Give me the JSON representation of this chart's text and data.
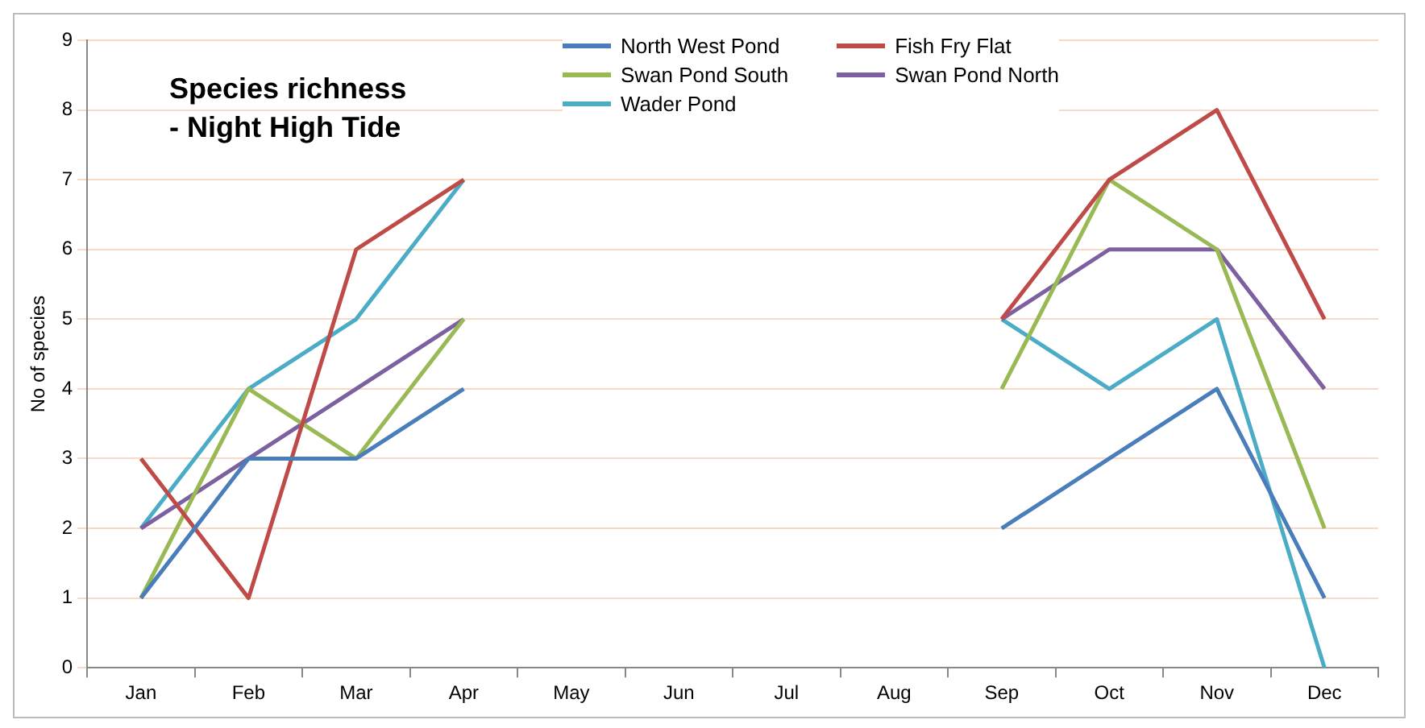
{
  "chart_data": {
    "type": "line",
    "title": "Species richness",
    "subtitle": "- Night High Tide",
    "ylabel": "No of species",
    "categories": [
      "Jan",
      "Feb",
      "Mar",
      "Apr",
      "May",
      "Jun",
      "Jul",
      "Aug",
      "Sep",
      "Oct",
      "Nov",
      "Dec"
    ],
    "series": [
      {
        "name": "North West Pond",
        "color": "#4a7ebb",
        "values": [
          1,
          3,
          3,
          4,
          null,
          null,
          null,
          null,
          2,
          3,
          4,
          1
        ]
      },
      {
        "name": "Fish Fry Flat",
        "color": "#be4b48",
        "values": [
          3,
          1,
          6,
          7,
          null,
          null,
          null,
          null,
          5,
          7,
          8,
          5
        ]
      },
      {
        "name": "Swan Pond South",
        "color": "#98b954",
        "values": [
          1,
          4,
          3,
          5,
          null,
          null,
          null,
          null,
          4,
          7,
          6,
          2
        ]
      },
      {
        "name": "Swan Pond North",
        "color": "#7d60a0",
        "values": [
          2,
          3,
          4,
          5,
          null,
          null,
          null,
          null,
          5,
          6,
          6,
          4
        ]
      },
      {
        "name": "Wader Pond",
        "color": "#4bacc6",
        "values": [
          2,
          4,
          5,
          7,
          null,
          null,
          null,
          null,
          5,
          4,
          5,
          0
        ]
      }
    ],
    "ylim": [
      0,
      9
    ],
    "yticks": [
      0,
      1,
      2,
      3,
      4,
      5,
      6,
      7,
      8,
      9
    ],
    "grid": "y",
    "legend": "top",
    "marker": "none",
    "line_style": "solid"
  }
}
